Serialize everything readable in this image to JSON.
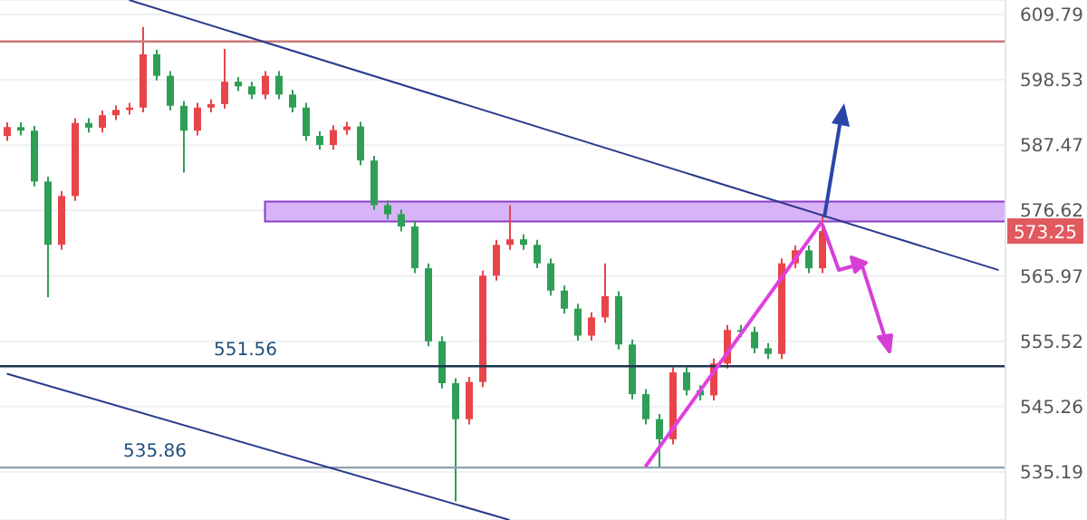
{
  "chart_data": {
    "type": "candlestick",
    "categories": [
      null,
      null,
      null,
      null,
      null,
      null,
      null,
      null,
      null,
      null,
      null,
      null,
      null,
      null,
      null,
      null,
      null,
      null,
      null,
      null,
      null,
      null,
      null,
      null,
      null,
      null,
      null,
      null,
      null,
      null,
      null,
      null,
      null,
      null,
      null,
      null,
      null,
      null,
      null,
      null,
      null,
      null,
      null,
      null,
      null,
      null,
      null,
      null,
      null,
      null,
      null,
      null,
      null,
      null,
      null,
      null,
      null,
      null,
      null,
      null,
      null,
      null,
      null,
      null,
      null,
      null,
      null,
      null,
      null,
      null,
      null,
      null,
      null,
      null
    ],
    "ohlc": [
      [
        589.0,
        591.3,
        588.2,
        590.5
      ],
      [
        590.5,
        591.3,
        589.1,
        589.9
      ],
      [
        589.9,
        590.7,
        580.6,
        581.4
      ],
      [
        581.4,
        582.2,
        562.5,
        571.0
      ],
      [
        571.0,
        579.8,
        570.2,
        579.0
      ],
      [
        579.0,
        592.0,
        578.2,
        591.2
      ],
      [
        591.2,
        592.0,
        589.6,
        590.4
      ],
      [
        590.4,
        593.3,
        589.6,
        592.5
      ],
      [
        592.5,
        594.2,
        591.7,
        593.4
      ],
      [
        593.4,
        594.6,
        592.6,
        593.8
      ],
      [
        593.8,
        607.6,
        593.0,
        602.9
      ],
      [
        602.9,
        603.7,
        598.4,
        599.2
      ],
      [
        599.2,
        600.0,
        593.3,
        594.1
      ],
      [
        594.1,
        594.9,
        582.9,
        589.9
      ],
      [
        589.9,
        594.6,
        589.1,
        593.8
      ],
      [
        593.8,
        595.2,
        593.0,
        594.4
      ],
      [
        594.4,
        603.8,
        593.6,
        598.2
      ],
      [
        598.2,
        599.0,
        596.6,
        597.4
      ],
      [
        597.4,
        598.2,
        595.2,
        596.0
      ],
      [
        596.0,
        600.0,
        595.2,
        599.2
      ],
      [
        599.2,
        600.0,
        595.2,
        596.0
      ],
      [
        596.0,
        596.8,
        593.0,
        593.8
      ],
      [
        593.8,
        594.6,
        588.2,
        589.0
      ],
      [
        589.0,
        589.8,
        586.7,
        587.5
      ],
      [
        587.5,
        590.8,
        586.7,
        590.0
      ],
      [
        590.0,
        591.4,
        589.2,
        590.6
      ],
      [
        590.6,
        591.4,
        584.1,
        584.9
      ],
      [
        584.9,
        585.7,
        576.7,
        577.5
      ],
      [
        577.5,
        578.3,
        575.2,
        576.0
      ],
      [
        576.0,
        576.8,
        573.2,
        574.0
      ],
      [
        574.0,
        574.8,
        566.4,
        567.2
      ],
      [
        567.2,
        568.0,
        554.7,
        555.5
      ],
      [
        555.5,
        556.3,
        548.1,
        548.9
      ],
      [
        548.9,
        549.7,
        530.7,
        543.3
      ],
      [
        543.3,
        549.9,
        542.5,
        549.1
      ],
      [
        549.1,
        566.8,
        548.3,
        566.0
      ],
      [
        566.0,
        571.8,
        565.2,
        571.0
      ],
      [
        571.0,
        577.5,
        570.2,
        571.9
      ],
      [
        571.9,
        572.7,
        570.2,
        571.0
      ],
      [
        571.0,
        571.8,
        567.2,
        568.0
      ],
      [
        568.0,
        568.8,
        562.8,
        563.6
      ],
      [
        563.6,
        564.4,
        559.9,
        560.7
      ],
      [
        560.7,
        561.5,
        555.6,
        556.4
      ],
      [
        556.4,
        560.1,
        555.6,
        559.3
      ],
      [
        559.3,
        568.0,
        558.5,
        562.7
      ],
      [
        562.7,
        563.5,
        554.2,
        555.0
      ],
      [
        555.0,
        555.8,
        546.4,
        547.2
      ],
      [
        547.2,
        548.0,
        542.5,
        543.3
      ],
      [
        543.3,
        544.1,
        536.0,
        540.2
      ],
      [
        540.2,
        551.4,
        539.4,
        550.6
      ],
      [
        550.6,
        551.4,
        547.0,
        547.8
      ],
      [
        547.8,
        548.6,
        546.2,
        547.0
      ],
      [
        547.0,
        552.8,
        546.2,
        552.0
      ],
      [
        552.0,
        558.1,
        551.2,
        557.3
      ],
      [
        557.3,
        558.1,
        556.2,
        557.0
      ],
      [
        557.0,
        557.8,
        553.6,
        554.4
      ],
      [
        554.4,
        555.2,
        552.7,
        553.5
      ],
      [
        553.5,
        568.8,
        552.7,
        568.0
      ],
      [
        568.0,
        570.9,
        567.2,
        570.1
      ],
      [
        570.1,
        570.9,
        566.4,
        567.2
      ],
      [
        567.2,
        576.0,
        566.4,
        573.25
      ],
      null,
      null,
      null,
      null,
      null,
      null,
      null,
      null,
      null,
      null,
      null,
      null,
      null
    ],
    "colors": [
      "#e8454a",
      "#2f9e57",
      "#2f9e57",
      "#2f9e57",
      "#e8454a",
      "#e8454a",
      "#2f9e57",
      "#e8454a",
      "#e8454a",
      "#e8454a",
      "#e8454a",
      "#2f9e57",
      "#2f9e57",
      "#2f9e57",
      "#e8454a",
      "#e8454a",
      "#e8454a",
      "#2f9e57",
      "#2f9e57",
      "#e8454a",
      "#2f9e57",
      "#2f9e57",
      "#2f9e57",
      "#2f9e57",
      "#e8454a",
      "#e8454a",
      "#2f9e57",
      "#2f9e57",
      "#2f9e57",
      "#2f9e57",
      "#2f9e57",
      "#2f9e57",
      "#2f9e57",
      "#2f9e57",
      "#e8454a",
      "#e8454a",
      "#e8454a",
      "#e8454a",
      "#2f9e57",
      "#2f9e57",
      "#2f9e57",
      "#2f9e57",
      "#2f9e57",
      "#e8454a",
      "#e8454a",
      "#2f9e57",
      "#2f9e57",
      "#2f9e57",
      "#2f9e57",
      "#e8454a",
      "#2f9e57",
      "#2f9e57",
      "#e8454a",
      "#e8454a",
      "#2f9e57",
      "#2f9e57",
      "#2f9e57",
      "#e8454a",
      "#e8454a",
      "#2f9e57",
      "#e8454a",
      null,
      null,
      null,
      null,
      null,
      null,
      null,
      null,
      null,
      null,
      null,
      null,
      null
    ],
    "series": [
      {
        "type": "line",
        "color": "#2b3a8c",
        "values": [
          null,
          null,
          null,
          null,
          null,
          null,
          null,
          null,
          null,
          612.3,
          null,
          null,
          null,
          null,
          null,
          null,
          null,
          null,
          null,
          null,
          null,
          null,
          null,
          null,
          null,
          null,
          null,
          null,
          null,
          null,
          null,
          null,
          null,
          null,
          null,
          null,
          null,
          null,
          null,
          null,
          null,
          null,
          null,
          null,
          null,
          null,
          null,
          null,
          null,
          null,
          null,
          null,
          null,
          null,
          null,
          null,
          null,
          null,
          null,
          null,
          null,
          null,
          null,
          null,
          null,
          null,
          null,
          null,
          null,
          null,
          null,
          null,
          null,
          566.9
        ]
      },
      {
        "type": "line",
        "color": "#2b3a8c",
        "values": [
          550.4,
          null,
          null,
          null,
          null,
          null,
          null,
          null,
          null,
          null,
          null,
          null,
          null,
          null,
          null,
          null,
          null,
          null,
          null,
          null,
          null,
          null,
          null,
          null,
          null,
          null,
          null,
          null,
          null,
          null,
          null,
          null,
          null,
          null,
          null,
          null,
          null,
          527.9,
          null,
          null,
          null,
          null,
          null,
          null,
          null,
          null,
          null,
          null,
          null,
          null,
          null,
          null,
          null,
          null,
          null,
          null,
          null,
          null,
          null,
          null,
          null,
          null,
          null,
          null,
          null,
          null,
          null,
          null,
          null,
          null,
          null,
          null,
          null,
          null
        ]
      },
      {
        "type": "line",
        "color": "#e040e0",
        "values": [
          null,
          null,
          null,
          null,
          null,
          null,
          null,
          null,
          null,
          null,
          null,
          null,
          null,
          null,
          null,
          null,
          null,
          null,
          null,
          null,
          null,
          null,
          null,
          null,
          null,
          null,
          null,
          null,
          null,
          null,
          null,
          null,
          null,
          null,
          null,
          null,
          null,
          null,
          null,
          null,
          null,
          null,
          null,
          null,
          null,
          null,
          null,
          536.0,
          null,
          null,
          null,
          null,
          null,
          null,
          null,
          null,
          null,
          null,
          null,
          null,
          574.8,
          null,
          null,
          null,
          null,
          null,
          null,
          null,
          null,
          null,
          null,
          null,
          null,
          null
        ]
      }
    ],
    "ylim": [
      527.9,
      612.3
    ],
    "yticks": [
      535.19,
      545.26,
      555.52,
      565.97,
      576.62,
      587.47,
      598.53,
      609.79
    ],
    "log": "y",
    "grid": "y",
    "tick_labels": "y",
    "ref_lines": [
      {
        "axis": "y",
        "value": 605.1,
        "label": null,
        "color": "#c9787a"
      },
      {
        "axis": "y",
        "value": 551.56,
        "label": "551.56",
        "color": "#1f3550"
      },
      {
        "axis": "y",
        "value": 535.86,
        "label": "535.86",
        "color": "#8fa0ad"
      }
    ],
    "bands": [
      {
        "axis": "y",
        "from": 574.8,
        "to": 578.1,
        "label": null,
        "color": "#d9b3f7"
      }
    ],
    "annotations": [
      {
        "text": "573.25",
        "y": 573.25
      }
    ]
  }
}
